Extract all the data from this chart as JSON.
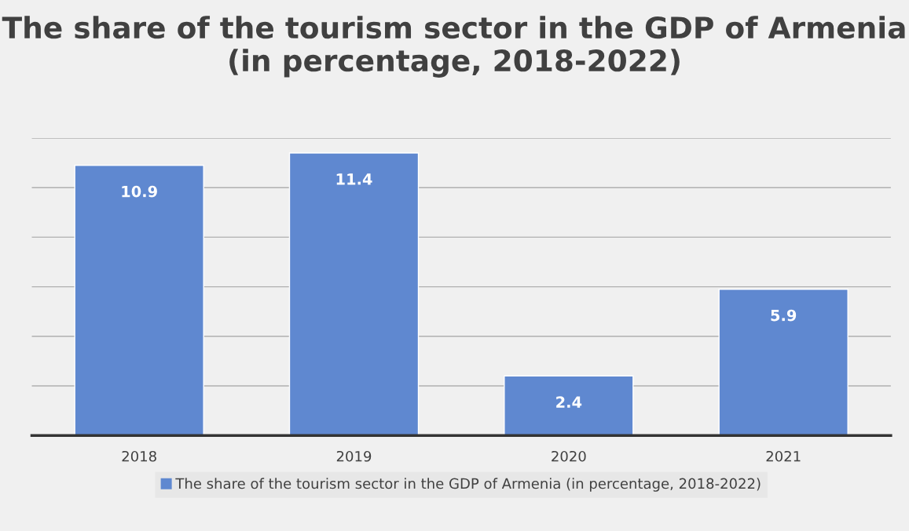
{
  "chart_data": {
    "type": "bar",
    "title": "The share of the tourism sector in the GDP of Armenia (in percentage, 2018-2022)",
    "categories": [
      "2018",
      "2019",
      "2020",
      "2021"
    ],
    "series": [
      {
        "name": "The share of the tourism sector in the GDP of Armenia (in percentage, 2018-2022)",
        "color": "#5f88d0",
        "values": [
          10.9,
          11.4,
          2.4,
          5.9
        ]
      }
    ],
    "ylim": [
      0,
      12
    ],
    "yticks": [
      {
        "value": 0,
        "label": null
      },
      {
        "value": 2,
        "label": null
      },
      {
        "value": 4,
        "label": null
      },
      {
        "value": 6,
        "label": null
      },
      {
        "value": 8,
        "label": null
      },
      {
        "value": 10,
        "label": null
      },
      {
        "value": 12,
        "label": null
      }
    ],
    "tick_labels": "x",
    "grid": "y",
    "data_labels": true,
    "legend": "bottom"
  }
}
